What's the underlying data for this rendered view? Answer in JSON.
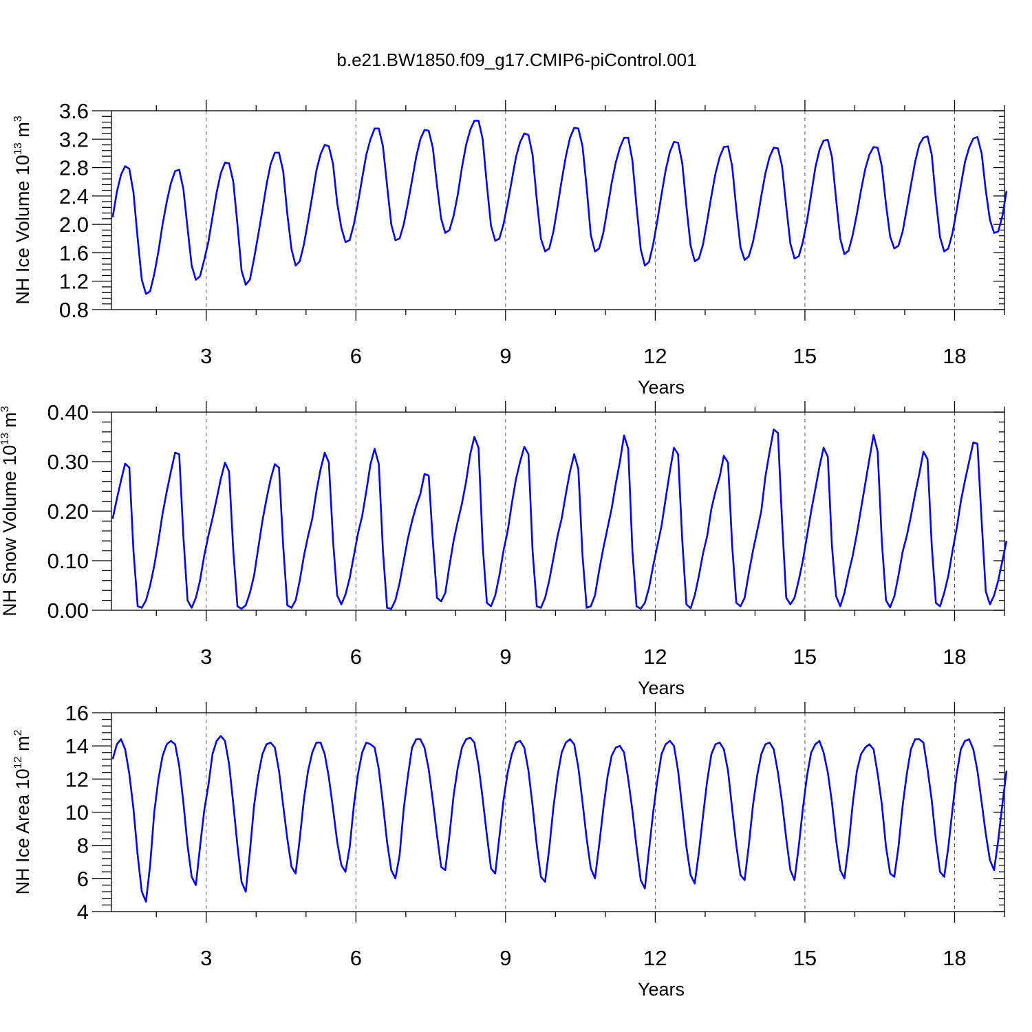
{
  "title": "b.e21.BW1850.f09_g17.CMIP6-piControl.001",
  "colors": {
    "line": "#0000ff",
    "axes": "#000000",
    "reference_line": "#555555"
  },
  "chart_data": [
    {
      "type": "line",
      "title": "b.e21.BW1850.f09_g17.CMIP6-piControl.001",
      "xlabel": "Years",
      "ylabel": {
        "text": "NH Ice Volume 10",
        "sup1": "13",
        "mid": " m",
        "sup2": "3"
      },
      "xlim": [
        1.1,
        19.0
      ],
      "ylim": [
        0.8,
        3.6
      ],
      "xticks": [
        3,
        6,
        9,
        12,
        15,
        18
      ],
      "xtick_labels": [
        "3",
        "6",
        "9",
        "12",
        "15",
        "18"
      ],
      "yticks": [
        0.8,
        1.2,
        1.6,
        2.0,
        2.4,
        2.8,
        3.2,
        3.6
      ],
      "ytick_labels": [
        "0.8",
        "1.2",
        "1.6",
        "2.0",
        "2.4",
        "2.8",
        "3.2",
        "3.6"
      ],
      "reference_lines_x": [
        3,
        6,
        9,
        12,
        15,
        18
      ],
      "grid": false,
      "series": [
        {
          "monthly_start_year": 1.125,
          "values": [
            2.1,
            2.46,
            2.7,
            2.82,
            2.78,
            2.45,
            1.8,
            1.22,
            1.02,
            1.06,
            1.3,
            1.62,
            2.0,
            2.32,
            2.58,
            2.75,
            2.77,
            2.5,
            1.95,
            1.42,
            1.22,
            1.27,
            1.5,
            1.75,
            2.1,
            2.45,
            2.72,
            2.87,
            2.86,
            2.6,
            2.0,
            1.35,
            1.15,
            1.22,
            1.52,
            1.85,
            2.2,
            2.56,
            2.85,
            3.01,
            3.01,
            2.75,
            2.15,
            1.65,
            1.42,
            1.48,
            1.72,
            2.05,
            2.4,
            2.76,
            2.99,
            3.12,
            3.1,
            2.85,
            2.3,
            1.95,
            1.75,
            1.78,
            2.0,
            2.3,
            2.65,
            2.98,
            3.2,
            3.35,
            3.35,
            3.1,
            2.55,
            2.0,
            1.78,
            1.8,
            2.0,
            2.3,
            2.62,
            2.95,
            3.2,
            3.33,
            3.32,
            3.08,
            2.55,
            2.08,
            1.88,
            1.92,
            2.12,
            2.42,
            2.8,
            3.12,
            3.33,
            3.46,
            3.46,
            3.2,
            2.55,
            1.98,
            1.77,
            1.8,
            2.0,
            2.3,
            2.62,
            2.95,
            3.16,
            3.28,
            3.26,
            2.98,
            2.35,
            1.8,
            1.62,
            1.66,
            1.9,
            2.25,
            2.62,
            2.96,
            3.22,
            3.36,
            3.35,
            3.1,
            2.52,
            1.85,
            1.62,
            1.66,
            1.88,
            2.22,
            2.58,
            2.87,
            3.08,
            3.22,
            3.22,
            2.9,
            2.25,
            1.65,
            1.42,
            1.47,
            1.72,
            2.05,
            2.42,
            2.76,
            3.02,
            3.16,
            3.15,
            2.86,
            2.25,
            1.7,
            1.48,
            1.52,
            1.72,
            2.05,
            2.4,
            2.72,
            2.95,
            3.09,
            3.1,
            2.82,
            2.22,
            1.68,
            1.5,
            1.55,
            1.75,
            2.05,
            2.4,
            2.72,
            2.95,
            3.08,
            3.07,
            2.82,
            2.25,
            1.73,
            1.52,
            1.55,
            1.75,
            2.05,
            2.42,
            2.8,
            3.05,
            3.18,
            3.19,
            2.95,
            2.35,
            1.8,
            1.58,
            1.63,
            1.85,
            2.15,
            2.48,
            2.78,
            2.98,
            3.09,
            3.08,
            2.82,
            2.28,
            1.83,
            1.66,
            1.7,
            1.9,
            2.22,
            2.55,
            2.88,
            3.12,
            3.22,
            3.24,
            2.98,
            2.35,
            1.82,
            1.62,
            1.66,
            1.88,
            2.2,
            2.55,
            2.88,
            3.08,
            3.21,
            3.23,
            3.0,
            2.48,
            2.06,
            1.88,
            1.9,
            2.12,
            2.47
          ]
        }
      ]
    },
    {
      "type": "line",
      "xlabel": "Years",
      "ylabel": {
        "text": "NH Snow Volume 10",
        "sup1": "13",
        "mid": " m",
        "sup2": "3"
      },
      "xlim": [
        1.1,
        19.0
      ],
      "ylim": [
        0.0,
        0.4
      ],
      "xticks": [
        3,
        6,
        9,
        12,
        15,
        18
      ],
      "xtick_labels": [
        "3",
        "6",
        "9",
        "12",
        "15",
        "18"
      ],
      "yticks": [
        0.0,
        0.1,
        0.2,
        0.3,
        0.4
      ],
      "ytick_labels": [
        "0.00",
        "0.10",
        "0.20",
        "0.30",
        "0.40"
      ],
      "reference_lines_x": [
        3,
        6,
        9,
        12,
        15,
        18
      ],
      "grid": false,
      "series": [
        {
          "monthly_start_year": 1.125,
          "values": [
            0.185,
            0.225,
            0.262,
            0.296,
            0.288,
            0.12,
            0.008,
            0.005,
            0.02,
            0.05,
            0.09,
            0.14,
            0.195,
            0.24,
            0.28,
            0.318,
            0.315,
            0.15,
            0.02,
            0.005,
            0.025,
            0.06,
            0.11,
            0.15,
            0.185,
            0.225,
            0.265,
            0.298,
            0.28,
            0.12,
            0.008,
            0.003,
            0.01,
            0.035,
            0.07,
            0.125,
            0.18,
            0.225,
            0.265,
            0.295,
            0.288,
            0.13,
            0.01,
            0.005,
            0.02,
            0.06,
            0.11,
            0.15,
            0.185,
            0.24,
            0.285,
            0.318,
            0.298,
            0.14,
            0.03,
            0.012,
            0.032,
            0.065,
            0.11,
            0.155,
            0.19,
            0.24,
            0.295,
            0.326,
            0.295,
            0.12,
            0.005,
            0.003,
            0.02,
            0.055,
            0.1,
            0.145,
            0.18,
            0.21,
            0.235,
            0.275,
            0.272,
            0.14,
            0.025,
            0.018,
            0.035,
            0.09,
            0.14,
            0.18,
            0.215,
            0.26,
            0.315,
            0.35,
            0.328,
            0.13,
            0.015,
            0.008,
            0.03,
            0.07,
            0.12,
            0.16,
            0.215,
            0.265,
            0.3,
            0.33,
            0.315,
            0.12,
            0.008,
            0.005,
            0.025,
            0.06,
            0.105,
            0.15,
            0.185,
            0.235,
            0.28,
            0.315,
            0.285,
            0.11,
            0.005,
            0.008,
            0.03,
            0.08,
            0.125,
            0.165,
            0.205,
            0.255,
            0.3,
            0.353,
            0.326,
            0.12,
            0.008,
            0.003,
            0.015,
            0.045,
            0.09,
            0.13,
            0.17,
            0.225,
            0.28,
            0.328,
            0.315,
            0.14,
            0.012,
            0.004,
            0.03,
            0.07,
            0.115,
            0.15,
            0.205,
            0.24,
            0.27,
            0.312,
            0.298,
            0.13,
            0.015,
            0.008,
            0.025,
            0.075,
            0.12,
            0.16,
            0.2,
            0.27,
            0.32,
            0.365,
            0.358,
            0.18,
            0.025,
            0.012,
            0.025,
            0.06,
            0.1,
            0.15,
            0.2,
            0.245,
            0.29,
            0.328,
            0.31,
            0.13,
            0.028,
            0.008,
            0.035,
            0.075,
            0.11,
            0.155,
            0.205,
            0.255,
            0.305,
            0.354,
            0.32,
            0.14,
            0.02,
            0.006,
            0.028,
            0.07,
            0.118,
            0.15,
            0.19,
            0.235,
            0.275,
            0.32,
            0.305,
            0.13,
            0.015,
            0.008,
            0.035,
            0.07,
            0.12,
            0.165,
            0.22,
            0.262,
            0.3,
            0.339,
            0.336,
            0.18,
            0.038,
            0.012,
            0.03,
            0.06,
            0.1,
            0.14
          ]
        }
      ]
    },
    {
      "type": "line",
      "xlabel": "Years",
      "ylabel": {
        "text": "NH Ice Area 10",
        "sup1": "12",
        "mid": " m",
        "sup2": "2"
      },
      "xlim": [
        1.1,
        19.0
      ],
      "ylim": [
        4,
        16
      ],
      "xticks": [
        3,
        6,
        9,
        12,
        15,
        18
      ],
      "xtick_labels": [
        "3",
        "6",
        "9",
        "12",
        "15",
        "18"
      ],
      "yticks": [
        4,
        6,
        8,
        10,
        12,
        14,
        16
      ],
      "ytick_labels": [
        "4",
        "6",
        "8",
        "10",
        "12",
        "14",
        "16"
      ],
      "reference_lines_x": [
        3,
        6,
        9,
        12,
        15,
        18
      ],
      "grid": false,
      "series": [
        {
          "monthly_start_year": 1.125,
          "values": [
            13.2,
            14.1,
            14.4,
            13.8,
            12.3,
            10.2,
            7.4,
            5.2,
            4.6,
            6.8,
            10.0,
            12.0,
            13.4,
            14.1,
            14.3,
            14.1,
            12.8,
            10.6,
            8.0,
            6.1,
            5.6,
            7.9,
            10.1,
            11.6,
            13.5,
            14.3,
            14.6,
            14.3,
            12.9,
            10.5,
            8.0,
            5.8,
            5.2,
            7.6,
            10.4,
            12.2,
            13.5,
            14.1,
            14.2,
            13.9,
            12.5,
            10.4,
            8.4,
            6.7,
            6.3,
            8.4,
            10.8,
            12.5,
            13.6,
            14.2,
            14.2,
            13.5,
            12.1,
            10.2,
            8.2,
            6.8,
            6.4,
            7.9,
            10.4,
            12.3,
            13.6,
            14.2,
            14.1,
            13.9,
            12.6,
            10.5,
            8.2,
            6.5,
            6.0,
            7.4,
            10.2,
            12.2,
            13.9,
            14.4,
            14.4,
            13.9,
            12.6,
            10.7,
            8.6,
            6.7,
            6.5,
            8.6,
            11.0,
            12.7,
            13.9,
            14.4,
            14.5,
            14.2,
            12.8,
            10.8,
            8.6,
            6.6,
            6.3,
            8.5,
            10.7,
            12.4,
            13.5,
            14.2,
            14.3,
            13.9,
            12.5,
            10.4,
            8.0,
            6.1,
            5.8,
            7.8,
            10.3,
            12.2,
            13.6,
            14.2,
            14.4,
            14.1,
            12.7,
            10.6,
            8.4,
            6.6,
            6.0,
            8.0,
            10.2,
            12.1,
            13.4,
            13.9,
            14.0,
            13.6,
            12.0,
            10.1,
            7.9,
            5.9,
            5.4,
            7.7,
            10.0,
            11.9,
            13.5,
            14.1,
            14.3,
            14.0,
            12.5,
            10.2,
            7.9,
            6.2,
            5.7,
            7.6,
            9.8,
            11.9,
            13.5,
            14.1,
            14.2,
            13.8,
            12.5,
            10.2,
            8.0,
            6.2,
            5.9,
            8.0,
            10.4,
            12.2,
            13.5,
            14.1,
            14.2,
            13.8,
            12.4,
            10.6,
            8.4,
            6.5,
            5.9,
            7.9,
            10.2,
            12.2,
            13.6,
            14.1,
            14.3,
            13.6,
            12.4,
            10.6,
            8.3,
            6.5,
            6.0,
            8.0,
            10.5,
            12.5,
            13.5,
            13.9,
            14.1,
            13.8,
            12.3,
            10.5,
            7.9,
            6.3,
            6.1,
            7.9,
            10.4,
            12.3,
            13.8,
            14.4,
            14.4,
            14.2,
            12.6,
            10.7,
            8.3,
            6.4,
            6.1,
            7.9,
            10.2,
            12.3,
            13.8,
            14.3,
            14.4,
            13.8,
            12.5,
            10.6,
            8.7,
            7.1,
            6.5,
            8.3,
            10.5,
            12.5
          ]
        }
      ]
    }
  ]
}
